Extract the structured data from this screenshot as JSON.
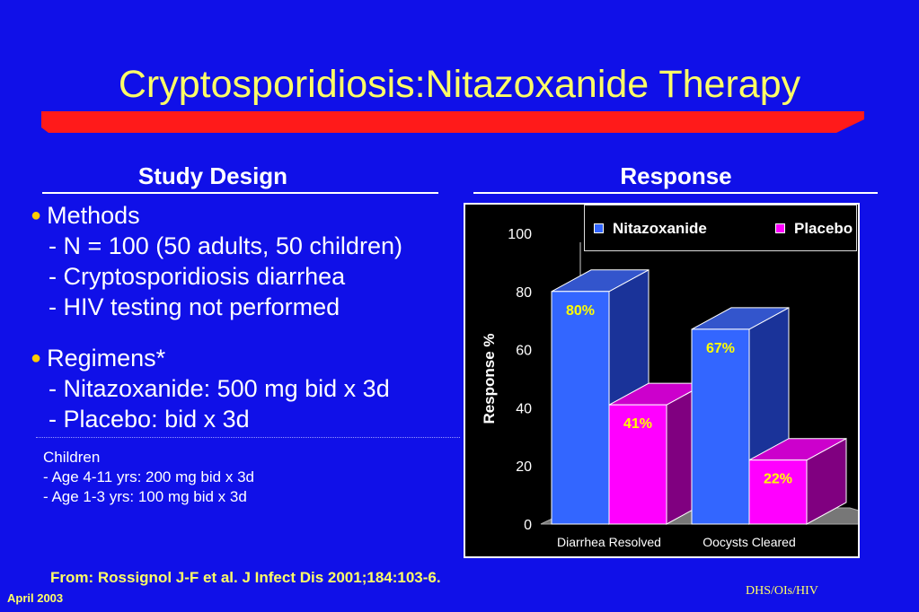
{
  "slide": {
    "title": "Cryptosporidiosis:Nitazoxanide Therapy",
    "left_heading": "Study Design",
    "right_heading": "Response"
  },
  "design": {
    "methods": {
      "bullet": "●",
      "label": "Methods",
      "lines": [
        "- N = 100 (50 adults, 50 children)",
        "- Cryptosporidiosis diarrhea",
        "- HIV testing not performed"
      ]
    },
    "regimens": {
      "bullet": "●",
      "label": "Regimens*",
      "lines": [
        "- Nitazoxanide: 500 mg bid x 3d",
        "- Placebo: bid x 3d"
      ]
    },
    "children_note": {
      "heading": "Children",
      "lines": [
        "- Age 4-11 yrs: 200 mg bid x 3d",
        "- Age 1-3 yrs: 100 mg bid x 3d"
      ]
    }
  },
  "footer": {
    "source": "From: Rossignol J-F et al.  J Infect Dis 2001;184:103-6.",
    "date": "April 2003",
    "org": "DHS/OIs/HIV"
  },
  "colors": {
    "background": "#1010e8",
    "title_text": "#ffff66",
    "accent_bar": "#ff1a1a",
    "nitazoxanide_front": "#3366ff",
    "nitazoxanide_side": "#1a3399",
    "nitazoxanide_top": "#3355cc",
    "placebo_front": "#ff00ff",
    "placebo_side": "#800080",
    "placebo_top": "#cc00cc",
    "bullet": "#ffcc00"
  },
  "chart_data": {
    "type": "bar",
    "title": "",
    "xlabel": "",
    "ylabel": "Response %",
    "ylim": [
      0,
      100
    ],
    "yticks": [
      0,
      20,
      40,
      60,
      80,
      100
    ],
    "categories": [
      "Diarrhea Resolved",
      "Oocysts Cleared"
    ],
    "series": [
      {
        "name": "Nitazoxanide",
        "values": [
          80,
          67
        ],
        "labels": [
          "80%",
          "67%"
        ]
      },
      {
        "name": "Placebo",
        "values": [
          41,
          22
        ],
        "labels": [
          "41%",
          "22%"
        ]
      }
    ],
    "legend_position": "top",
    "grid": false,
    "style": "3d"
  }
}
